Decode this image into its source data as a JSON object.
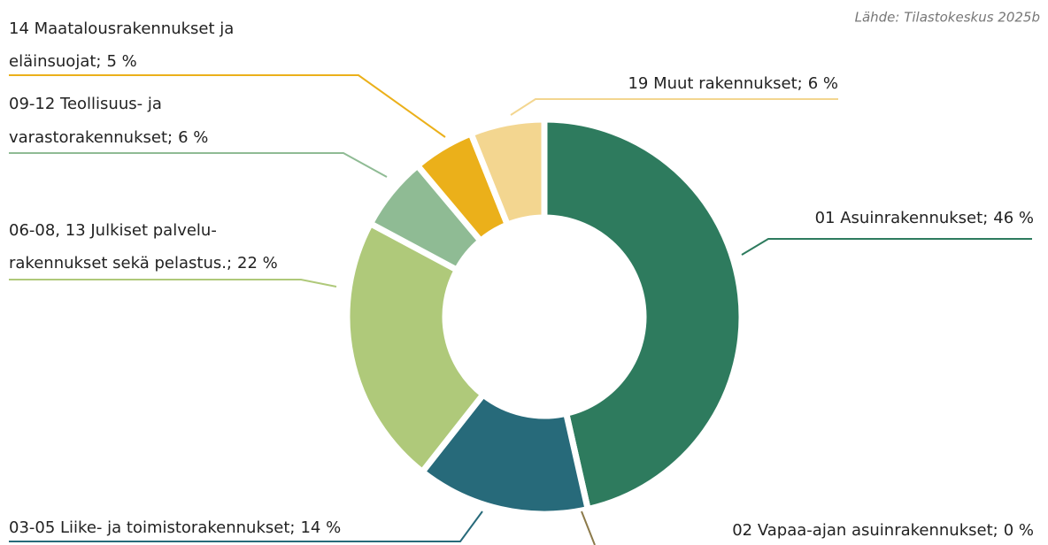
{
  "chart_data": {
    "type": "donut",
    "source": "Lähde: Tilastokeskus 2025b",
    "categories": [
      [
        "01 Asuinrakennukset;"
      ],
      [
        "02 Vapaa-ajan asuinrakennukset;"
      ],
      [
        "03-05 Liike- ja toimistorakennukset;"
      ],
      [
        "06-08, 13 Julkiset palvelu-",
        "rakennukset sekä pelastus.;"
      ],
      [
        "09-12 Teollisuus- ja",
        "varastorakennukset;"
      ],
      [
        "14 Maatalousrakennukset ja",
        "eläinsuojat;"
      ],
      [
        "19 Muut rakennukset;"
      ]
    ],
    "values": [
      46,
      0,
      14,
      22,
      6,
      5,
      6
    ],
    "value_labels": [
      "46 %",
      "0 %",
      "14 %",
      "22 %",
      "6 %",
      "5 %",
      "6 %"
    ],
    "colors": [
      "#2e7b5e",
      "#8c7a4a",
      "#276a7a",
      "#afc97a",
      "#8fbb94",
      "#ebb01a",
      "#f3d690"
    ]
  }
}
